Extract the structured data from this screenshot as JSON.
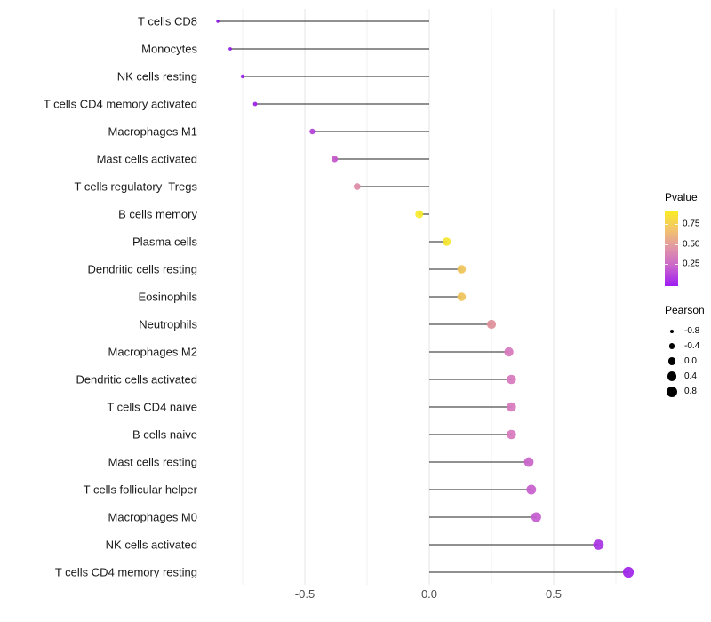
{
  "chart_data": {
    "type": "lollipop",
    "orientation": "horizontal",
    "title": "",
    "xlabel": "",
    "ylabel": "",
    "categories": [
      "T cells CD8",
      "Monocytes",
      "NK cells resting",
      "T cells CD4 memory activated",
      "Macrophages M1",
      "Mast cells activated",
      "T cells regulatory  Tregs",
      "B cells memory",
      "Plasma cells",
      "Dendritic cells resting",
      "Eosinophils",
      "Neutrophils",
      "Macrophages M2",
      "Dendritic cells activated",
      "T cells CD4 naive",
      "B cells naive",
      "Mast cells resting",
      "T cells follicular helper",
      "Macrophages M0",
      "NK cells activated",
      "T cells CD4 memory resting"
    ],
    "series": [
      {
        "name": "Pearson",
        "values": [
          -0.85,
          -0.8,
          -0.75,
          -0.7,
          -0.47,
          -0.38,
          -0.29,
          -0.04,
          0.07,
          0.13,
          0.13,
          0.25,
          0.32,
          0.33,
          0.33,
          0.33,
          0.4,
          0.41,
          0.43,
          0.68,
          0.8
        ]
      }
    ],
    "pvalues_approx": [
      0.01,
      0.02,
      0.03,
      0.04,
      0.13,
      0.2,
      0.43,
      0.9,
      0.86,
      0.7,
      0.7,
      0.46,
      0.36,
      0.36,
      0.35,
      0.35,
      0.28,
      0.25,
      0.24,
      0.07,
      0.02
    ],
    "point_colors": [
      "#8610E0",
      "#9018E4",
      "#9A1DE6",
      "#9C20E6",
      "#B240D8",
      "#C255CB",
      "#DC8CA6",
      "#F5EA28",
      "#F5E52E",
      "#EFC359",
      "#EFC359",
      "#DE8F98",
      "#D877BD",
      "#D877BD",
      "#D877BD",
      "#D877BD",
      "#C964C9",
      "#C75ECD",
      "#C55CD0",
      "#A832E2",
      "#9D23E8"
    ],
    "point_radii": [
      1.7,
      1.9,
      2.2,
      2.4,
      3.2,
      3.6,
      3.9,
      4.5,
      4.7,
      4.8,
      4.8,
      5.1,
      5.2,
      5.25,
      5.25,
      5.3,
      5.4,
      5.45,
      5.5,
      5.9,
      6.1
    ],
    "x_ticks": [
      "-0.5",
      "0.0",
      "0.5"
    ],
    "x_tick_values": [
      -0.5,
      0.0,
      0.5
    ],
    "xlim": [
      -0.91,
      0.91
    ],
    "grid": {
      "major": [
        -0.5,
        0.0,
        0.5
      ],
      "minor": [
        -0.75,
        -0.25,
        0.25,
        0.75
      ]
    },
    "stem_color": "#4D4D4D",
    "axis_text_color": "#4D4D4D",
    "label_text_color": "#1A1A1A",
    "grid_major_color": "#E4E4E4",
    "grid_minor_color": "#F2F2F2",
    "legend_pvalue": {
      "title": "Pvalue",
      "tick_labels": [
        "0.75",
        "0.50",
        "0.25"
      ],
      "gradient_stops": [
        "#FBEE21",
        "#F2C46C",
        "#E094A8",
        "#C862CE",
        "#9E1CF3"
      ]
    },
    "legend_pearson": {
      "title": "Pearson",
      "labels": [
        "-0.8",
        "-0.4",
        "0.0",
        "0.4",
        "0.8"
      ],
      "dot_radii": [
        2.0,
        3.4,
        4.3,
        5.2,
        6.0
      ]
    }
  }
}
